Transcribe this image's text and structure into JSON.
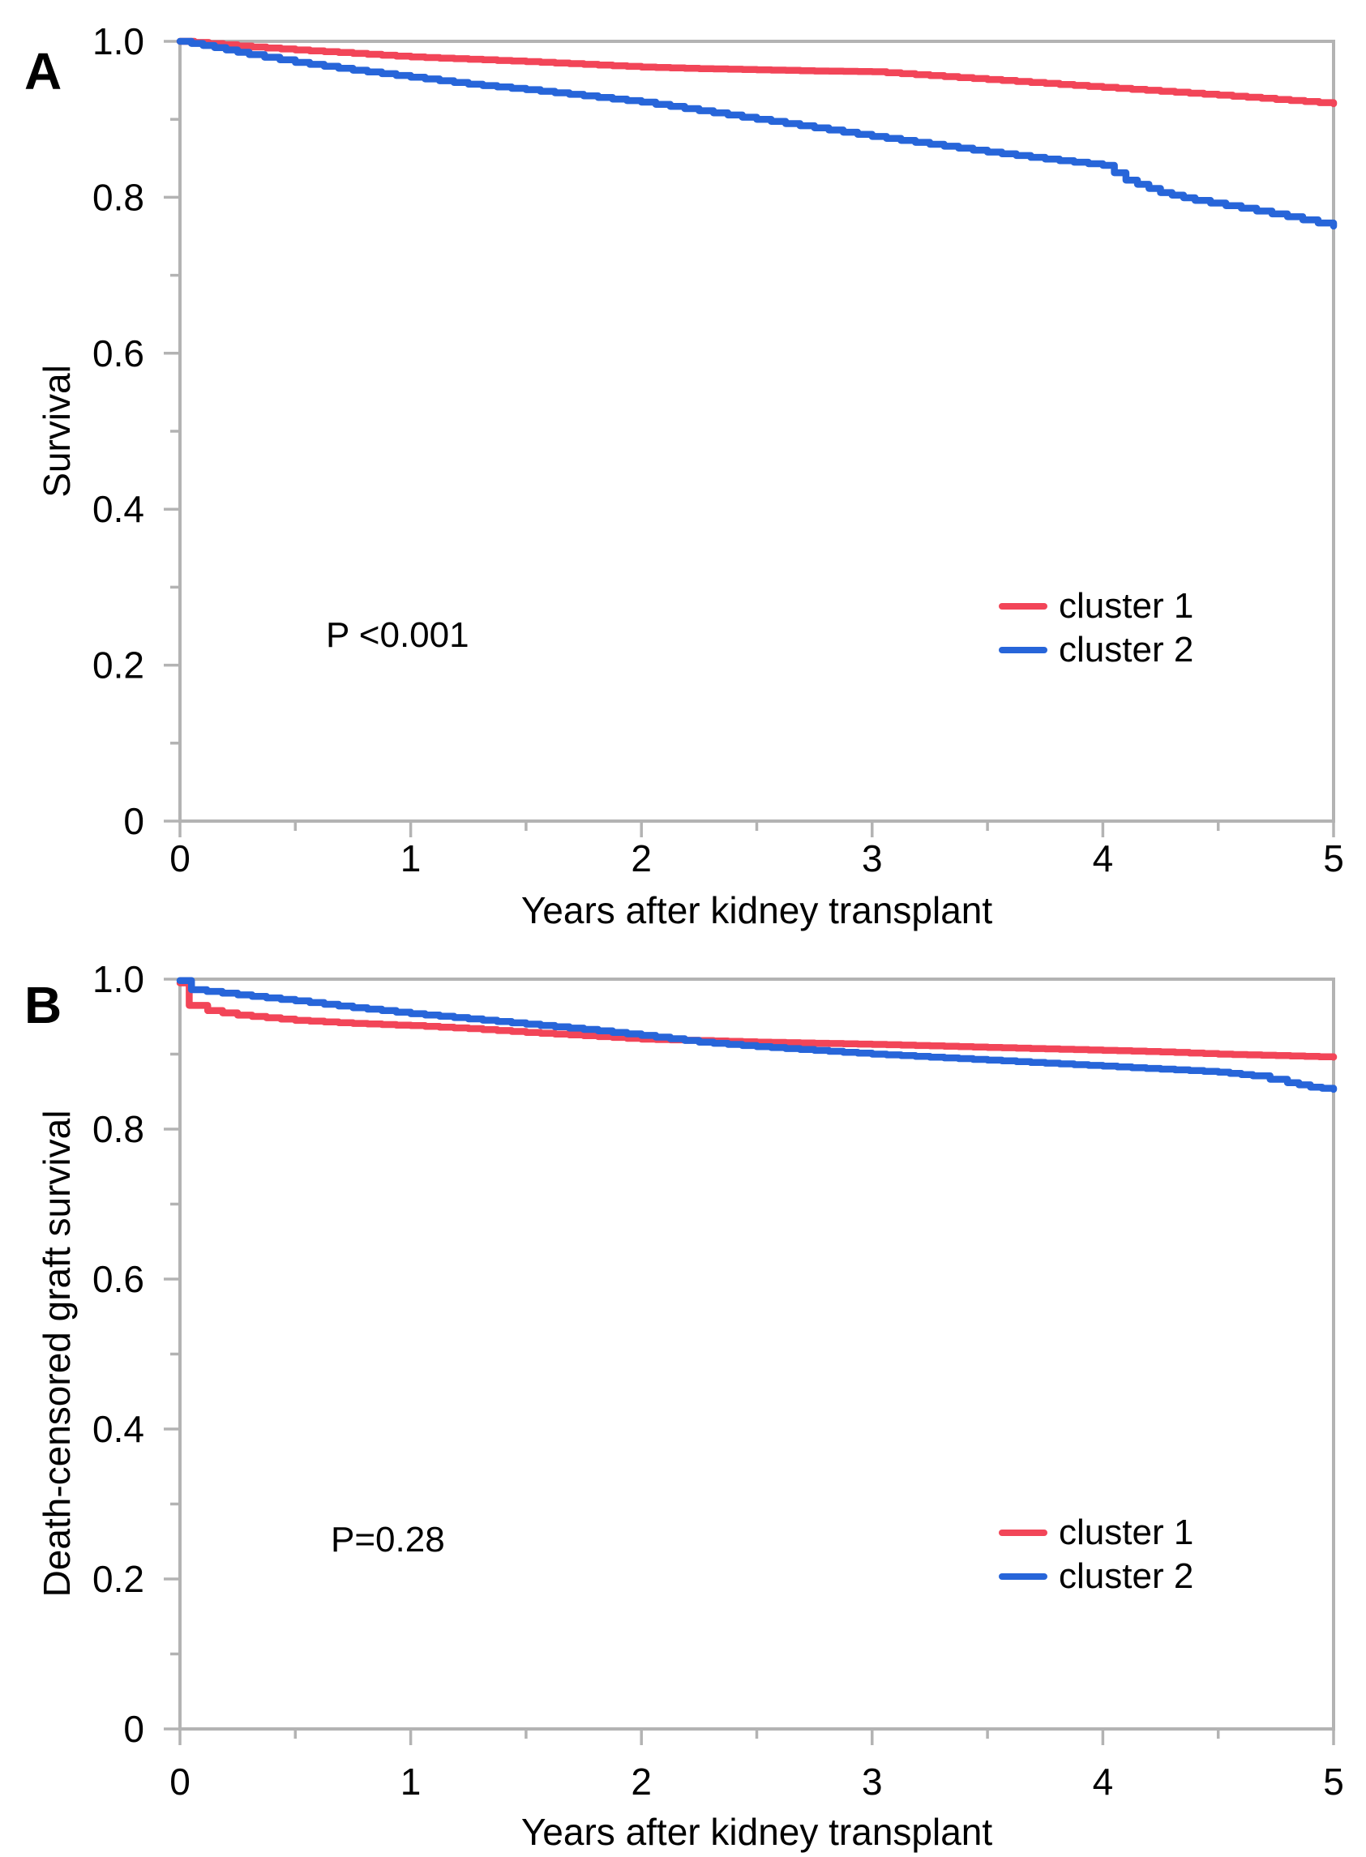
{
  "figure": {
    "background": "#ffffff",
    "frame_color": "#b3b3b3",
    "text_color": "#000000",
    "accent_red": "#f24558",
    "accent_blue": "#2765d9"
  },
  "chart_data": [
    {
      "type": "line",
      "subtype": "kaplan-meier-step",
      "panel_label": "A",
      "xlabel": "Years after kidney transplant",
      "ylabel": "Survival",
      "annotation": "P <0.001",
      "xlim": [
        0,
        5
      ],
      "ylim": [
        0,
        1.0
      ],
      "xtick_values": [
        0,
        1,
        2,
        3,
        4,
        5
      ],
      "xtick_labels": [
        "0",
        "1",
        "2",
        "3",
        "4",
        "5"
      ],
      "xminor_values": [
        0.5,
        1.5,
        2.5,
        3.5,
        4.5
      ],
      "ytick_values": [
        0,
        0.2,
        0.4,
        0.6,
        0.8,
        1.0
      ],
      "ytick_labels": [
        "0",
        "0.2",
        "0.4",
        "0.6",
        "0.8",
        "1.0"
      ],
      "yminor_values": [
        0.1,
        0.3,
        0.5,
        0.7,
        0.9
      ],
      "grid": false,
      "legend_position": "inside-right",
      "series": [
        {
          "name": "cluster 1",
          "color": "#f24558",
          "points": [
            [
              0,
              1.0
            ],
            [
              0.25,
              0.994
            ],
            [
              0.5,
              0.989
            ],
            [
              0.75,
              0.9845
            ],
            [
              1,
              0.98
            ],
            [
              1.25,
              0.977
            ],
            [
              1.5,
              0.974
            ],
            [
              1.75,
              0.9705
            ],
            [
              2,
              0.967
            ],
            [
              2.25,
              0.965
            ],
            [
              2.5,
              0.9635
            ],
            [
              2.75,
              0.962
            ],
            [
              3,
              0.961
            ],
            [
              3.25,
              0.956
            ],
            [
              3.5,
              0.951
            ],
            [
              3.75,
              0.946
            ],
            [
              4,
              0.941
            ],
            [
              4.25,
              0.936
            ],
            [
              4.5,
              0.931
            ],
            [
              4.75,
              0.9255
            ],
            [
              5,
              0.92
            ]
          ]
        },
        {
          "name": "cluster 2",
          "color": "#2765d9",
          "points": [
            [
              0,
              1.0
            ],
            [
              0.15,
              0.992
            ],
            [
              0.3,
              0.983
            ],
            [
              0.5,
              0.973
            ],
            [
              0.75,
              0.963
            ],
            [
              1,
              0.954
            ],
            [
              1.25,
              0.945
            ],
            [
              1.5,
              0.938
            ],
            [
              1.75,
              0.93
            ],
            [
              2,
              0.922
            ],
            [
              2.25,
              0.911
            ],
            [
              2.5,
              0.9
            ],
            [
              2.75,
              0.889
            ],
            [
              3,
              0.878
            ],
            [
              3.25,
              0.868
            ],
            [
              3.5,
              0.858
            ],
            [
              3.75,
              0.849
            ],
            [
              4,
              0.841
            ],
            [
              4.1,
              0.822
            ],
            [
              4.25,
              0.806
            ],
            [
              4.4,
              0.796
            ],
            [
              4.6,
              0.786
            ],
            [
              4.8,
              0.775
            ],
            [
              5,
              0.763
            ]
          ]
        }
      ]
    },
    {
      "type": "line",
      "subtype": "kaplan-meier-step",
      "panel_label": "B",
      "xlabel": "Years after kidney transplant",
      "ylabel": "Death-censored graft survival",
      "annotation": "P=0.28",
      "xlim": [
        0,
        5
      ],
      "ylim": [
        0,
        1.0
      ],
      "xtick_values": [
        0,
        1,
        2,
        3,
        4,
        5
      ],
      "xtick_labels": [
        "0",
        "1",
        "2",
        "3",
        "4",
        "5"
      ],
      "xminor_values": [
        0.5,
        1.5,
        2.5,
        3.5,
        4.5
      ],
      "ytick_values": [
        0,
        0.2,
        0.4,
        0.6,
        0.8,
        1.0
      ],
      "ytick_labels": [
        "0",
        "0.2",
        "0.4",
        "0.6",
        "0.8",
        "1.0"
      ],
      "yminor_values": [
        0.1,
        0.3,
        0.5,
        0.7,
        0.9
      ],
      "grid": false,
      "legend_position": "inside-right",
      "series": [
        {
          "name": "cluster 1",
          "color": "#f24558",
          "points": [
            [
              0,
              0.995
            ],
            [
              0.04,
              0.965
            ],
            [
              0.12,
              0.958
            ],
            [
              0.25,
              0.952
            ],
            [
              0.5,
              0.945
            ],
            [
              0.75,
              0.941
            ],
            [
              1,
              0.938
            ],
            [
              1.25,
              0.934
            ],
            [
              1.5,
              0.929
            ],
            [
              1.75,
              0.9245
            ],
            [
              2,
              0.92
            ],
            [
              2.25,
              0.918
            ],
            [
              2.5,
              0.916
            ],
            [
              2.75,
              0.9145
            ],
            [
              3,
              0.913
            ],
            [
              3.25,
              0.911
            ],
            [
              3.5,
              0.909
            ],
            [
              3.75,
              0.907
            ],
            [
              4,
              0.905
            ],
            [
              4.25,
              0.903
            ],
            [
              4.5,
              0.9
            ],
            [
              4.75,
              0.898
            ],
            [
              5,
              0.896
            ]
          ]
        },
        {
          "name": "cluster 2",
          "color": "#2765d9",
          "points": [
            [
              0,
              0.998
            ],
            [
              0.05,
              0.986
            ],
            [
              0.25,
              0.979
            ],
            [
              0.5,
              0.971
            ],
            [
              0.75,
              0.962
            ],
            [
              1,
              0.954
            ],
            [
              1.25,
              0.947
            ],
            [
              1.5,
              0.94
            ],
            [
              1.75,
              0.933
            ],
            [
              2,
              0.925
            ],
            [
              2.25,
              0.916
            ],
            [
              2.5,
              0.91
            ],
            [
              2.75,
              0.905
            ],
            [
              3,
              0.9
            ],
            [
              3.25,
              0.896
            ],
            [
              3.5,
              0.892
            ],
            [
              3.75,
              0.888
            ],
            [
              4,
              0.884
            ],
            [
              4.25,
              0.88
            ],
            [
              4.5,
              0.876
            ],
            [
              4.65,
              0.871
            ],
            [
              4.8,
              0.862
            ],
            [
              4.9,
              0.856
            ],
            [
              5,
              0.853
            ]
          ]
        }
      ]
    }
  ]
}
